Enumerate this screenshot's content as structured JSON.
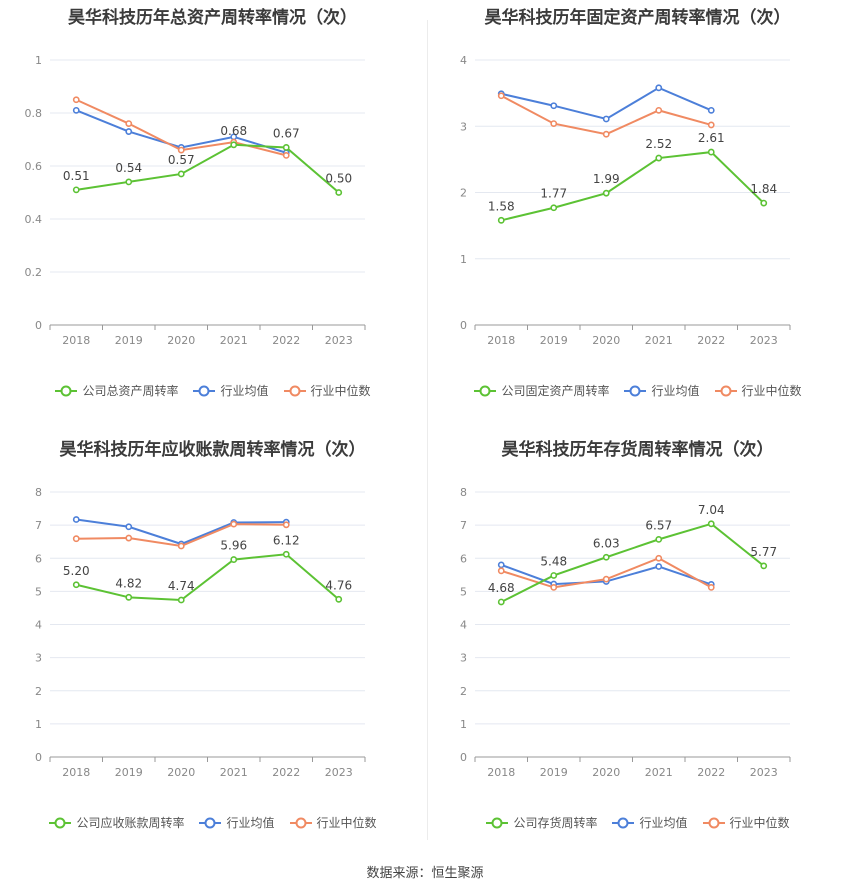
{
  "colors": {
    "company": "#5cc234",
    "avg": "#4c7fd9",
    "median": "#f08a62"
  },
  "source_text": "数据来源：恒生聚源",
  "legend_labels": {
    "avg": "行业均值",
    "median": "行业中位数"
  },
  "chart_data": [
    {
      "type": "line",
      "title": "昊华科技历年总资产周转率情况（次）",
      "categories": [
        "2018",
        "2019",
        "2020",
        "2021",
        "2022",
        "2023"
      ],
      "ylim": [
        0,
        1
      ],
      "yticks": [
        "0",
        "0.2",
        "0.4",
        "0.6",
        "0.8",
        "1"
      ],
      "grid": true,
      "legend_position": "bottom",
      "series": [
        {
          "name": "公司总资产周转率",
          "key": "company",
          "values": [
            0.51,
            0.54,
            0.57,
            0.68,
            0.67,
            0.5
          ],
          "labels": [
            "0.51",
            "0.54",
            "0.57",
            "0.68",
            "0.67",
            "0.50"
          ]
        },
        {
          "name": "行业均值",
          "key": "avg",
          "values": [
            0.81,
            0.73,
            0.67,
            0.71,
            0.65,
            null
          ]
        },
        {
          "name": "行业中位数",
          "key": "median",
          "values": [
            0.85,
            0.76,
            0.66,
            0.69,
            0.64,
            null
          ]
        }
      ]
    },
    {
      "type": "line",
      "title": "昊华科技历年固定资产周转率情况（次）",
      "categories": [
        "2018",
        "2019",
        "2020",
        "2021",
        "2022",
        "2023"
      ],
      "ylim": [
        0,
        4
      ],
      "yticks": [
        "0",
        "1",
        "2",
        "3",
        "4"
      ],
      "grid": true,
      "legend_position": "bottom",
      "series": [
        {
          "name": "公司固定资产周转率",
          "key": "company",
          "values": [
            1.58,
            1.77,
            1.99,
            2.52,
            2.61,
            1.84
          ],
          "labels": [
            "1.58",
            "1.77",
            "1.99",
            "2.52",
            "2.61",
            "1.84"
          ]
        },
        {
          "name": "行业均值",
          "key": "avg",
          "values": [
            3.49,
            3.31,
            3.11,
            3.58,
            3.24,
            null
          ]
        },
        {
          "name": "行业中位数",
          "key": "median",
          "values": [
            3.46,
            3.04,
            2.88,
            3.24,
            3.02,
            null
          ]
        }
      ]
    },
    {
      "type": "line",
      "title": "昊华科技历年应收账款周转率情况（次）",
      "categories": [
        "2018",
        "2019",
        "2020",
        "2021",
        "2022",
        "2023"
      ],
      "ylim": [
        0,
        8
      ],
      "yticks": [
        "0",
        "1",
        "2",
        "3",
        "4",
        "5",
        "6",
        "7",
        "8"
      ],
      "grid": true,
      "legend_position": "bottom",
      "series": [
        {
          "name": "公司应收账款周转率",
          "key": "company",
          "values": [
            5.2,
            4.82,
            4.74,
            5.96,
            6.12,
            4.76
          ],
          "labels": [
            "5.20",
            "4.82",
            "4.74",
            "5.96",
            "6.12",
            "4.76"
          ]
        },
        {
          "name": "行业均值",
          "key": "avg",
          "values": [
            7.17,
            6.95,
            6.43,
            7.08,
            7.09,
            null
          ]
        },
        {
          "name": "行业中位数",
          "key": "median",
          "values": [
            6.59,
            6.61,
            6.37,
            7.03,
            7.01,
            null
          ]
        }
      ]
    },
    {
      "type": "line",
      "title": "昊华科技历年存货周转率情况（次）",
      "categories": [
        "2018",
        "2019",
        "2020",
        "2021",
        "2022",
        "2023"
      ],
      "ylim": [
        0,
        8
      ],
      "yticks": [
        "0",
        "1",
        "2",
        "3",
        "4",
        "5",
        "6",
        "7",
        "8"
      ],
      "grid": true,
      "legend_position": "bottom",
      "series": [
        {
          "name": "公司存货周转率",
          "key": "company",
          "values": [
            4.68,
            5.48,
            6.03,
            6.57,
            7.04,
            5.77
          ],
          "labels": [
            "4.68",
            "5.48",
            "6.03",
            "6.57",
            "7.04",
            "5.77"
          ]
        },
        {
          "name": "行业均值",
          "key": "avg",
          "values": [
            5.8,
            5.22,
            5.3,
            5.75,
            5.21,
            null
          ]
        },
        {
          "name": "行业中位数",
          "key": "median",
          "values": [
            5.62,
            5.12,
            5.37,
            6.0,
            5.12,
            null
          ]
        }
      ]
    }
  ]
}
